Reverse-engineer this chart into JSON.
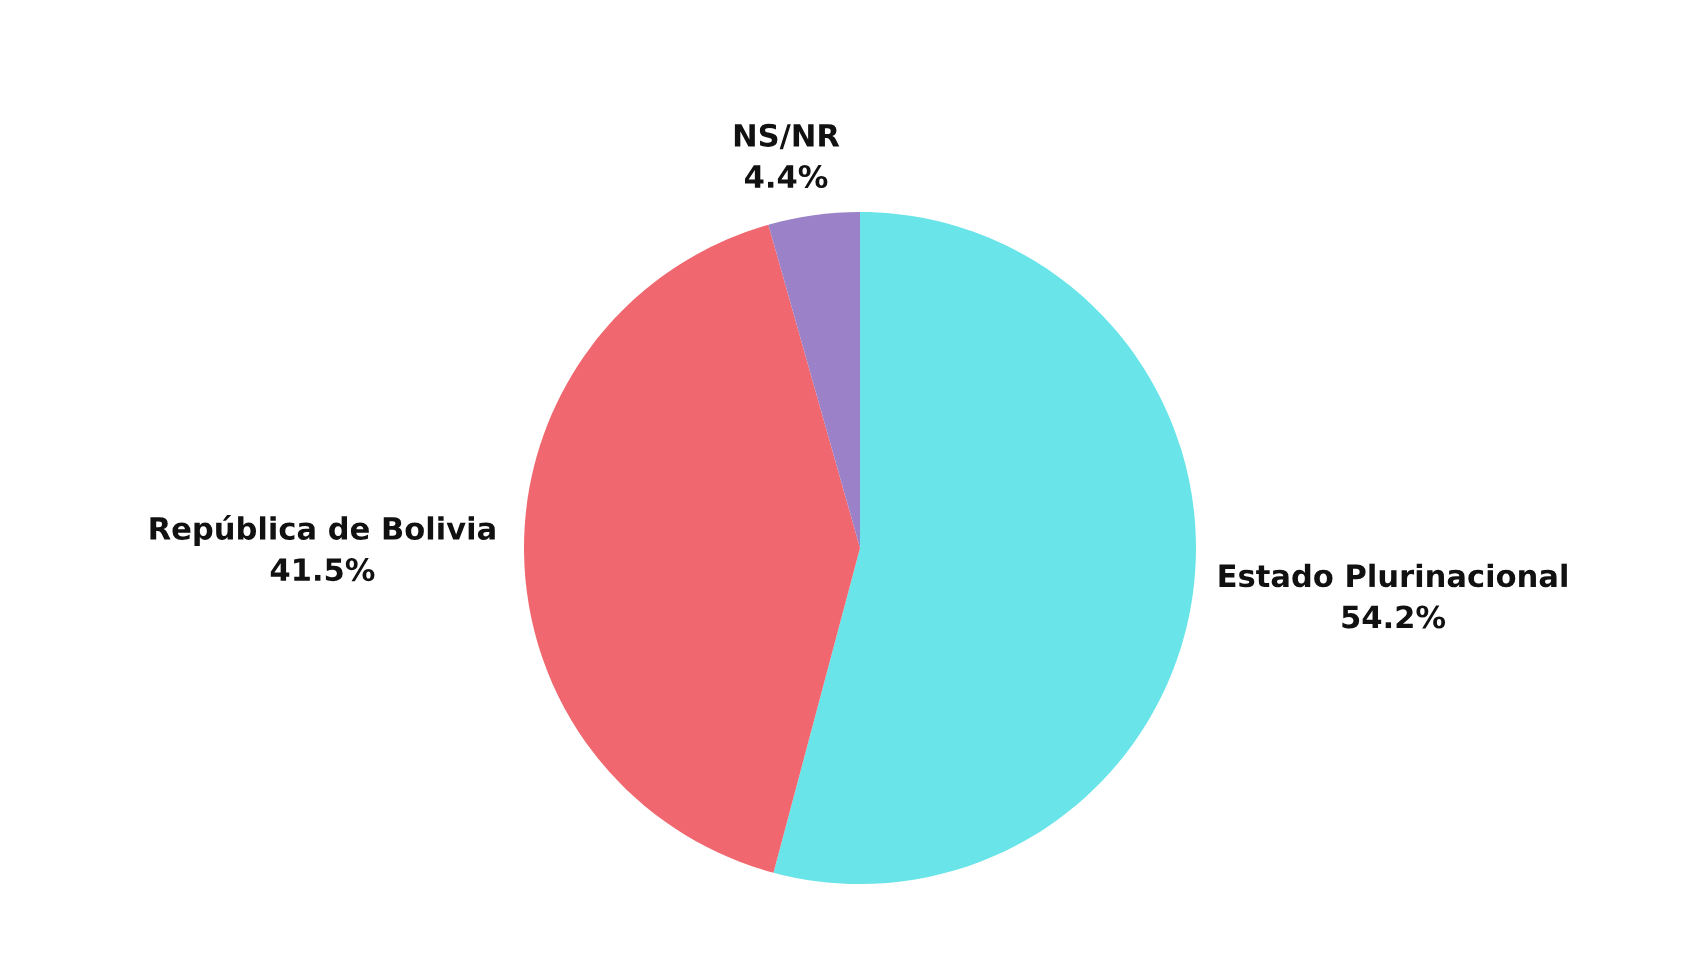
{
  "chart_data": {
    "type": "pie",
    "categories": [
      "Estado Plurinacional",
      "República de Bolivia",
      "NS/NR"
    ],
    "values": [
      54.2,
      41.5,
      4.4
    ],
    "value_labels": [
      "54.2%",
      "41.5%",
      "4.4%"
    ],
    "colors": [
      "#69e4e8",
      "#f0676f",
      "#9b82c8"
    ],
    "legend": false
  }
}
